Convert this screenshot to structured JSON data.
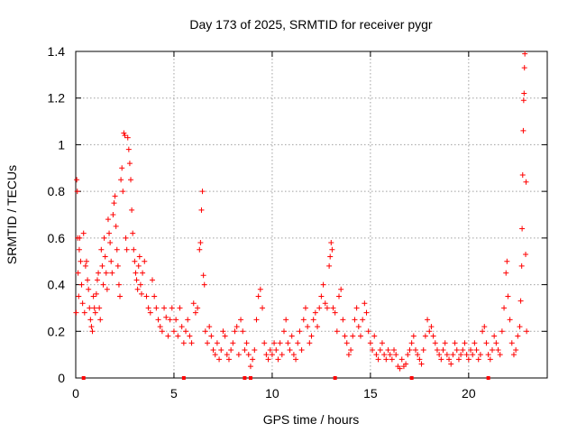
{
  "chart_data": {
    "type": "scatter",
    "title": "Day 173 of 2025, SRMTID for receiver pygr",
    "xlabel": "GPS time / hours",
    "ylabel": "SRMTID / TECUs",
    "xlim": [
      0,
      24
    ],
    "ylim": [
      0,
      1.4
    ],
    "xticks": [
      0,
      5,
      10,
      15,
      20
    ],
    "yticks": [
      0,
      0.2,
      0.4,
      0.6,
      0.8,
      1,
      1.2,
      1.4
    ],
    "xtick_labels": [
      "0",
      "5",
      "10",
      "15",
      "20"
    ],
    "ytick_labels": [
      "0",
      "0.2",
      "0.4",
      "0.6",
      "0.8",
      "1",
      "1.2",
      "1.4"
    ],
    "grid": true,
    "marker": "+",
    "color": "#ff0000",
    "gap_markers_x": [
      0.4,
      5.5,
      8.6,
      8.9,
      13.2,
      17.1,
      21.0
    ],
    "series": [
      {
        "name": "SRMTID",
        "points": [
          [
            0.02,
            0.28
          ],
          [
            0.05,
            0.85
          ],
          [
            0.08,
            0.8
          ],
          [
            0.1,
            0.6
          ],
          [
            0.12,
            0.45
          ],
          [
            0.15,
            0.35
          ],
          [
            0.18,
            0.55
          ],
          [
            0.2,
            0.6
          ],
          [
            0.25,
            0.5
          ],
          [
            0.3,
            0.4
          ],
          [
            0.35,
            0.32
          ],
          [
            0.4,
            0.62
          ],
          [
            0.45,
            0.28
          ],
          [
            0.5,
            0.48
          ],
          [
            0.55,
            0.5
          ],
          [
            0.6,
            0.42
          ],
          [
            0.65,
            0.38
          ],
          [
            0.7,
            0.3
          ],
          [
            0.75,
            0.25
          ],
          [
            0.8,
            0.22
          ],
          [
            0.85,
            0.2
          ],
          [
            0.9,
            0.35
          ],
          [
            0.95,
            0.3
          ],
          [
            1.0,
            0.28
          ],
          [
            1.05,
            0.36
          ],
          [
            1.1,
            0.42
          ],
          [
            1.15,
            0.45
          ],
          [
            1.2,
            0.3
          ],
          [
            1.25,
            0.25
          ],
          [
            1.3,
            0.55
          ],
          [
            1.35,
            0.48
          ],
          [
            1.4,
            0.4
          ],
          [
            1.45,
            0.6
          ],
          [
            1.5,
            0.52
          ],
          [
            1.55,
            0.45
          ],
          [
            1.6,
            0.38
          ],
          [
            1.65,
            0.68
          ],
          [
            1.7,
            0.62
          ],
          [
            1.75,
            0.58
          ],
          [
            1.8,
            0.5
          ],
          [
            1.85,
            0.45
          ],
          [
            1.9,
            0.7
          ],
          [
            1.95,
            0.75
          ],
          [
            2.0,
            0.78
          ],
          [
            2.05,
            0.65
          ],
          [
            2.1,
            0.55
          ],
          [
            2.15,
            0.48
          ],
          [
            2.2,
            0.4
          ],
          [
            2.25,
            0.35
          ],
          [
            2.3,
            0.85
          ],
          [
            2.35,
            0.9
          ],
          [
            2.4,
            0.8
          ],
          [
            2.45,
            1.05
          ],
          [
            2.5,
            1.04
          ],
          [
            2.55,
            0.6
          ],
          [
            2.6,
            0.55
          ],
          [
            2.65,
            1.03
          ],
          [
            2.7,
            0.98
          ],
          [
            2.75,
            0.92
          ],
          [
            2.8,
            0.85
          ],
          [
            2.85,
            0.72
          ],
          [
            2.9,
            0.62
          ],
          [
            2.95,
            0.55
          ],
          [
            3.0,
            0.5
          ],
          [
            3.05,
            0.45
          ],
          [
            3.1,
            0.42
          ],
          [
            3.15,
            0.38
          ],
          [
            3.2,
            0.48
          ],
          [
            3.25,
            0.52
          ],
          [
            3.3,
            0.4
          ],
          [
            3.35,
            0.36
          ],
          [
            3.4,
            0.45
          ],
          [
            3.5,
            0.5
          ],
          [
            3.6,
            0.35
          ],
          [
            3.7,
            0.3
          ],
          [
            3.8,
            0.28
          ],
          [
            3.9,
            0.42
          ],
          [
            4.0,
            0.35
          ],
          [
            4.1,
            0.3
          ],
          [
            4.2,
            0.25
          ],
          [
            4.3,
            0.22
          ],
          [
            4.4,
            0.2
          ],
          [
            4.5,
            0.3
          ],
          [
            4.6,
            0.26
          ],
          [
            4.7,
            0.18
          ],
          [
            4.8,
            0.25
          ],
          [
            4.9,
            0.3
          ],
          [
            5.0,
            0.2
          ],
          [
            5.1,
            0.25
          ],
          [
            5.2,
            0.18
          ],
          [
            5.3,
            0.3
          ],
          [
            5.4,
            0.22
          ],
          [
            5.5,
            0.15
          ],
          [
            5.6,
            0.2
          ],
          [
            5.7,
            0.25
          ],
          [
            5.8,
            0.18
          ],
          [
            5.9,
            0.15
          ],
          [
            6.0,
            0.32
          ],
          [
            6.1,
            0.28
          ],
          [
            6.2,
            0.3
          ],
          [
            6.3,
            0.55
          ],
          [
            6.35,
            0.58
          ],
          [
            6.4,
            0.72
          ],
          [
            6.45,
            0.8
          ],
          [
            6.5,
            0.44
          ],
          [
            6.55,
            0.4
          ],
          [
            6.6,
            0.2
          ],
          [
            6.7,
            0.15
          ],
          [
            6.8,
            0.22
          ],
          [
            6.9,
            0.18
          ],
          [
            7.0,
            0.12
          ],
          [
            7.1,
            0.1
          ],
          [
            7.2,
            0.15
          ],
          [
            7.3,
            0.08
          ],
          [
            7.4,
            0.12
          ],
          [
            7.5,
            0.2
          ],
          [
            7.6,
            0.18
          ],
          [
            7.7,
            0.1
          ],
          [
            7.8,
            0.08
          ],
          [
            7.9,
            0.12
          ],
          [
            8.0,
            0.15
          ],
          [
            8.1,
            0.2
          ],
          [
            8.2,
            0.22
          ],
          [
            8.3,
            0.1
          ],
          [
            8.4,
            0.25
          ],
          [
            8.5,
            0.2
          ],
          [
            8.6,
            0.12
          ],
          [
            8.7,
            0.15
          ],
          [
            8.8,
            0.1
          ],
          [
            8.9,
            0.05
          ],
          [
            9.0,
            0.08
          ],
          [
            9.1,
            0.12
          ],
          [
            9.2,
            0.25
          ],
          [
            9.3,
            0.35
          ],
          [
            9.4,
            0.38
          ],
          [
            9.5,
            0.3
          ],
          [
            9.6,
            0.15
          ],
          [
            9.7,
            0.1
          ],
          [
            9.8,
            0.08
          ],
          [
            9.9,
            0.12
          ],
          [
            10.0,
            0.1
          ],
          [
            10.1,
            0.15
          ],
          [
            10.2,
            0.12
          ],
          [
            10.3,
            0.08
          ],
          [
            10.4,
            0.15
          ],
          [
            10.5,
            0.1
          ],
          [
            10.6,
            0.2
          ],
          [
            10.7,
            0.25
          ],
          [
            10.8,
            0.15
          ],
          [
            10.9,
            0.12
          ],
          [
            11.0,
            0.18
          ],
          [
            11.1,
            0.1
          ],
          [
            11.2,
            0.08
          ],
          [
            11.3,
            0.15
          ],
          [
            11.4,
            0.2
          ],
          [
            11.5,
            0.12
          ],
          [
            11.6,
            0.25
          ],
          [
            11.7,
            0.3
          ],
          [
            11.8,
            0.22
          ],
          [
            11.9,
            0.15
          ],
          [
            12.0,
            0.18
          ],
          [
            12.1,
            0.25
          ],
          [
            12.2,
            0.28
          ],
          [
            12.3,
            0.22
          ],
          [
            12.4,
            0.3
          ],
          [
            12.5,
            0.35
          ],
          [
            12.6,
            0.4
          ],
          [
            12.7,
            0.32
          ],
          [
            12.8,
            0.3
          ],
          [
            12.9,
            0.48
          ],
          [
            12.95,
            0.52
          ],
          [
            13.0,
            0.58
          ],
          [
            13.05,
            0.55
          ],
          [
            13.1,
            0.3
          ],
          [
            13.2,
            0.28
          ],
          [
            13.3,
            0.2
          ],
          [
            13.4,
            0.35
          ],
          [
            13.5,
            0.38
          ],
          [
            13.6,
            0.25
          ],
          [
            13.7,
            0.18
          ],
          [
            13.8,
            0.15
          ],
          [
            13.9,
            0.1
          ],
          [
            14.0,
            0.12
          ],
          [
            14.1,
            0.18
          ],
          [
            14.2,
            0.25
          ],
          [
            14.3,
            0.3
          ],
          [
            14.4,
            0.22
          ],
          [
            14.5,
            0.18
          ],
          [
            14.6,
            0.25
          ],
          [
            14.7,
            0.32
          ],
          [
            14.8,
            0.28
          ],
          [
            14.9,
            0.2
          ],
          [
            15.0,
            0.15
          ],
          [
            15.1,
            0.12
          ],
          [
            15.2,
            0.18
          ],
          [
            15.3,
            0.1
          ],
          [
            15.4,
            0.08
          ],
          [
            15.5,
            0.12
          ],
          [
            15.6,
            0.15
          ],
          [
            15.7,
            0.1
          ],
          [
            15.8,
            0.08
          ],
          [
            15.9,
            0.12
          ],
          [
            16.0,
            0.1
          ],
          [
            16.1,
            0.08
          ],
          [
            16.2,
            0.12
          ],
          [
            16.3,
            0.1
          ],
          [
            16.4,
            0.05
          ],
          [
            16.5,
            0.04
          ],
          [
            16.6,
            0.08
          ],
          [
            16.7,
            0.05
          ],
          [
            16.8,
            0.06
          ],
          [
            16.9,
            0.1
          ],
          [
            17.0,
            0.12
          ],
          [
            17.1,
            0.15
          ],
          [
            17.2,
            0.18
          ],
          [
            17.3,
            0.12
          ],
          [
            17.4,
            0.1
          ],
          [
            17.5,
            0.08
          ],
          [
            17.6,
            0.06
          ],
          [
            17.7,
            0.12
          ],
          [
            17.8,
            0.18
          ],
          [
            17.9,
            0.25
          ],
          [
            18.0,
            0.2
          ],
          [
            18.1,
            0.22
          ],
          [
            18.2,
            0.18
          ],
          [
            18.3,
            0.15
          ],
          [
            18.4,
            0.12
          ],
          [
            18.5,
            0.1
          ],
          [
            18.6,
            0.08
          ],
          [
            18.7,
            0.12
          ],
          [
            18.8,
            0.15
          ],
          [
            18.9,
            0.1
          ],
          [
            19.0,
            0.08
          ],
          [
            19.1,
            0.06
          ],
          [
            19.2,
            0.1
          ],
          [
            19.3,
            0.15
          ],
          [
            19.4,
            0.12
          ],
          [
            19.5,
            0.08
          ],
          [
            19.6,
            0.1
          ],
          [
            19.7,
            0.12
          ],
          [
            19.8,
            0.15
          ],
          [
            19.9,
            0.1
          ],
          [
            20.0,
            0.08
          ],
          [
            20.1,
            0.12
          ],
          [
            20.2,
            0.1
          ],
          [
            20.3,
            0.15
          ],
          [
            20.4,
            0.12
          ],
          [
            20.5,
            0.08
          ],
          [
            20.6,
            0.1
          ],
          [
            20.7,
            0.2
          ],
          [
            20.8,
            0.22
          ],
          [
            20.9,
            0.15
          ],
          [
            21.0,
            0.1
          ],
          [
            21.1,
            0.08
          ],
          [
            21.2,
            0.12
          ],
          [
            21.3,
            0.18
          ],
          [
            21.4,
            0.15
          ],
          [
            21.5,
            0.12
          ],
          [
            21.6,
            0.1
          ],
          [
            21.7,
            0.2
          ],
          [
            21.8,
            0.3
          ],
          [
            21.9,
            0.45
          ],
          [
            21.95,
            0.5
          ],
          [
            22.0,
            0.35
          ],
          [
            22.1,
            0.25
          ],
          [
            22.2,
            0.15
          ],
          [
            22.3,
            0.1
          ],
          [
            22.4,
            0.12
          ],
          [
            22.5,
            0.18
          ],
          [
            22.6,
            0.22
          ],
          [
            22.65,
            0.33
          ],
          [
            22.7,
            0.48
          ],
          [
            22.72,
            0.64
          ],
          [
            22.75,
            0.87
          ],
          [
            22.78,
            1.06
          ],
          [
            22.8,
            1.19
          ],
          [
            22.82,
            1.22
          ],
          [
            22.84,
            1.33
          ],
          [
            22.86,
            1.39
          ],
          [
            22.9,
            0.53
          ],
          [
            22.92,
            0.84
          ],
          [
            22.95,
            0.2
          ]
        ]
      }
    ]
  }
}
